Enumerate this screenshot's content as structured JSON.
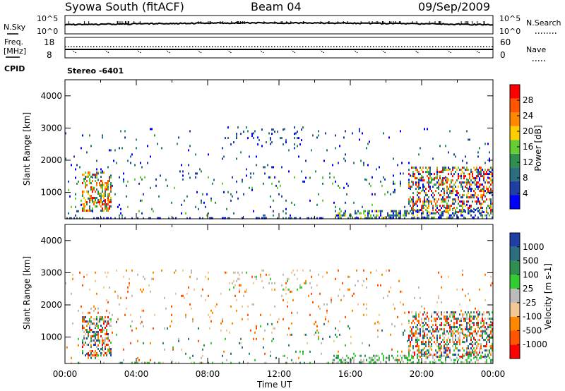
{
  "header": {
    "station": "Syowa South (fitACF)",
    "beam": "Beam 04",
    "date": "09/Sep/2009"
  },
  "nsky_panel": {
    "left_label": "N.Sky",
    "left_ticks": [
      "10^5",
      "10^0"
    ],
    "right_label": "N.Search",
    "right_ticks": [
      "10^5",
      "10^0"
    ]
  },
  "freq_panel": {
    "left_label_line1": "Freq.",
    "left_label_line2": "[MHz]",
    "left_ticks": [
      "18",
      "8"
    ],
    "right_label": "Nave",
    "right_ticks": [
      "60",
      "0"
    ]
  },
  "cpid": {
    "label": "CPID",
    "value": "Stereo  -6401"
  },
  "x_axis": {
    "title": "Time UT",
    "ticks": [
      "00:00",
      "04:00",
      "08:00",
      "12:00",
      "16:00",
      "20:00",
      "00:00"
    ]
  },
  "colors": {
    "power": [
      "#0000ff",
      "#1f3fa6",
      "#2c6e7f",
      "#2f8f4f",
      "#66cc33",
      "#ffcc00",
      "#ff8800",
      "#ff5500",
      "#ff0000"
    ],
    "velocity": [
      "#ff0000",
      "#ff5500",
      "#ff8800",
      "#f3c896",
      "#bbbbbb",
      "#33cc33",
      "#2f8f4f",
      "#2c6e7f",
      "#1f3fa6"
    ]
  },
  "chart_data": [
    {
      "type": "heatmap",
      "panel": "power",
      "ylabel": "Slant Range [km]",
      "xlabel": "",
      "xlim": [
        0,
        24
      ],
      "ylim": [
        180,
        4500
      ],
      "yticks": [
        "1000",
        "2000",
        "3000",
        "4000"
      ],
      "colorbar": {
        "label": "Power [dB]",
        "ticks": [
          "4",
          "8",
          "12",
          "16",
          "20",
          "24",
          "28"
        ],
        "range": [
          0,
          30
        ]
      },
      "regions": [
        {
          "t": [
            1.0,
            2.6
          ],
          "r": [
            450,
            1650
          ],
          "density": 0.45,
          "levels": [
            2,
            8
          ]
        },
        {
          "t": [
            0.0,
            24.0
          ],
          "r": [
            1400,
            3000
          ],
          "density": 0.025,
          "levels": [
            0,
            3
          ]
        },
        {
          "t": [
            0.0,
            24.0
          ],
          "r": [
            300,
            1500
          ],
          "density": 0.03,
          "levels": [
            0,
            4
          ]
        },
        {
          "t": [
            9.0,
            13.5
          ],
          "r": [
            2500,
            3050
          ],
          "density": 0.09,
          "levels": [
            0,
            2
          ]
        },
        {
          "t": [
            19.3,
            24.0
          ],
          "r": [
            400,
            1800
          ],
          "density": 0.4,
          "levels": [
            0,
            9
          ]
        },
        {
          "t": [
            15.0,
            24.0
          ],
          "r": [
            200,
            450
          ],
          "density": 0.35,
          "levels": [
            0,
            5
          ]
        },
        {
          "t": [
            0.0,
            24.0
          ],
          "r": [
            180,
            230
          ],
          "density": 0.3,
          "levels": [
            0,
            2
          ]
        }
      ]
    },
    {
      "type": "heatmap",
      "panel": "velocity",
      "ylabel": "Slant Range [km]",
      "xlabel": "Time UT",
      "xlim": [
        0,
        24
      ],
      "ylim": [
        180,
        4500
      ],
      "yticks": [
        "1000",
        "2000",
        "3000",
        "4000"
      ],
      "colorbar": {
        "label": "Velocity [m s-1]",
        "ticks": [
          "-1000",
          "-500",
          "-100",
          "-25",
          "25",
          "100",
          "500",
          "1000"
        ]
      },
      "regions": [
        {
          "t": [
            1.0,
            2.6
          ],
          "r": [
            450,
            1650
          ],
          "density": 0.5,
          "levels": [
            0,
            8
          ]
        },
        {
          "t": [
            0.0,
            24.0
          ],
          "r": [
            1400,
            3100
          ],
          "density": 0.03,
          "levels": [
            1,
            4
          ]
        },
        {
          "t": [
            0.0,
            24.0
          ],
          "r": [
            300,
            1500
          ],
          "density": 0.03,
          "levels": [
            1,
            7
          ]
        },
        {
          "t": [
            9.0,
            13.5
          ],
          "r": [
            2500,
            3100
          ],
          "density": 0.08,
          "levels": [
            3,
            5
          ]
        },
        {
          "t": [
            19.3,
            24.0
          ],
          "r": [
            400,
            1800
          ],
          "density": 0.45,
          "levels": [
            0,
            8
          ]
        },
        {
          "t": [
            15.0,
            24.0
          ],
          "r": [
            200,
            450
          ],
          "density": 0.35,
          "levels": [
            4,
            6
          ]
        },
        {
          "t": [
            0.0,
            24.0
          ],
          "r": [
            180,
            230
          ],
          "density": 0.25,
          "levels": [
            3,
            6
          ]
        }
      ]
    }
  ]
}
